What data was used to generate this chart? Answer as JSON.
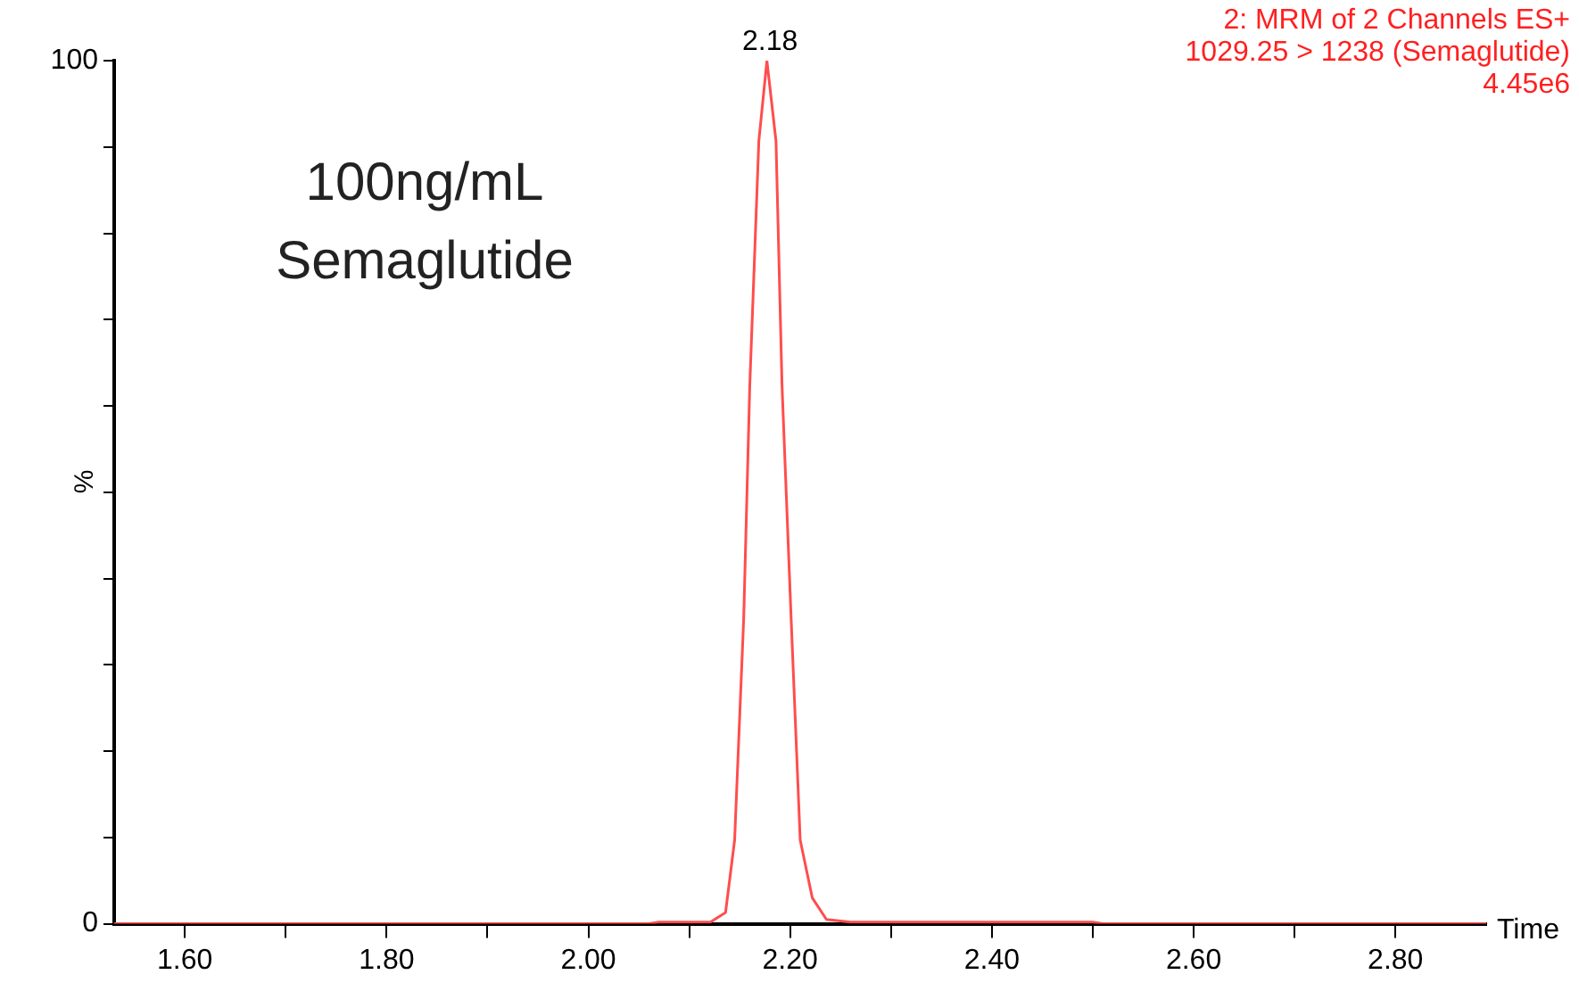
{
  "chart_data": {
    "type": "line",
    "xlabel": "Time",
    "ylabel": "%",
    "x": [
      1.53,
      2.06,
      2.07,
      2.121,
      2.136,
      2.145,
      2.154,
      2.16,
      2.169,
      2.177,
      2.186,
      2.192,
      2.201,
      2.21,
      2.222,
      2.236,
      2.26,
      2.5,
      2.51,
      2.89
    ],
    "series": [
      {
        "color": "#ff4d4d",
        "values": [
          0,
          0,
          0.2,
          0.2,
          1.3,
          9.7,
          35.4,
          62.3,
          90.7,
          100,
          90.7,
          62.3,
          35.4,
          9.7,
          3,
          0.5,
          0.2,
          0.2,
          0,
          0
        ]
      }
    ],
    "xlim": [
      1.53,
      2.89
    ],
    "xticks": [
      {
        "value": 1.6,
        "label": "1.60"
      },
      {
        "value": 1.7,
        "label": null
      },
      {
        "value": 1.8,
        "label": "1.80"
      },
      {
        "value": 1.9,
        "label": null
      },
      {
        "value": 2,
        "label": "2.00"
      },
      {
        "value": 2.1,
        "label": null
      },
      {
        "value": 2.2,
        "label": "2.20"
      },
      {
        "value": 2.3,
        "label": null
      },
      {
        "value": 2.4,
        "label": "2.40"
      },
      {
        "value": 2.5,
        "label": null
      },
      {
        "value": 2.6,
        "label": "2.60"
      },
      {
        "value": 2.7,
        "label": null
      },
      {
        "value": 2.8,
        "label": "2.80"
      }
    ],
    "ylim": [
      0,
      100
    ],
    "yticks": [
      0,
      {
        "value": 10,
        "label": null
      },
      {
        "value": 20,
        "label": null
      },
      {
        "value": 30,
        "label": null
      },
      {
        "value": 40,
        "label": null
      },
      {
        "value": 50,
        "label": null
      },
      {
        "value": 60,
        "label": null
      },
      {
        "value": 70,
        "label": null
      },
      {
        "value": 80,
        "label": null
      },
      {
        "value": 90,
        "label": null
      },
      100
    ],
    "grid": false,
    "legend": false,
    "marker": "none",
    "line_style": "solid",
    "annotations": [
      {
        "text": "2.18",
        "x": 2.18,
        "y": 100
      },
      "100ng/mL",
      "Semaglutide",
      "2: MRM of 2 Channels ES+",
      "1029.25 > 1238 (Semaglutide)",
      "4.45e6"
    ]
  }
}
